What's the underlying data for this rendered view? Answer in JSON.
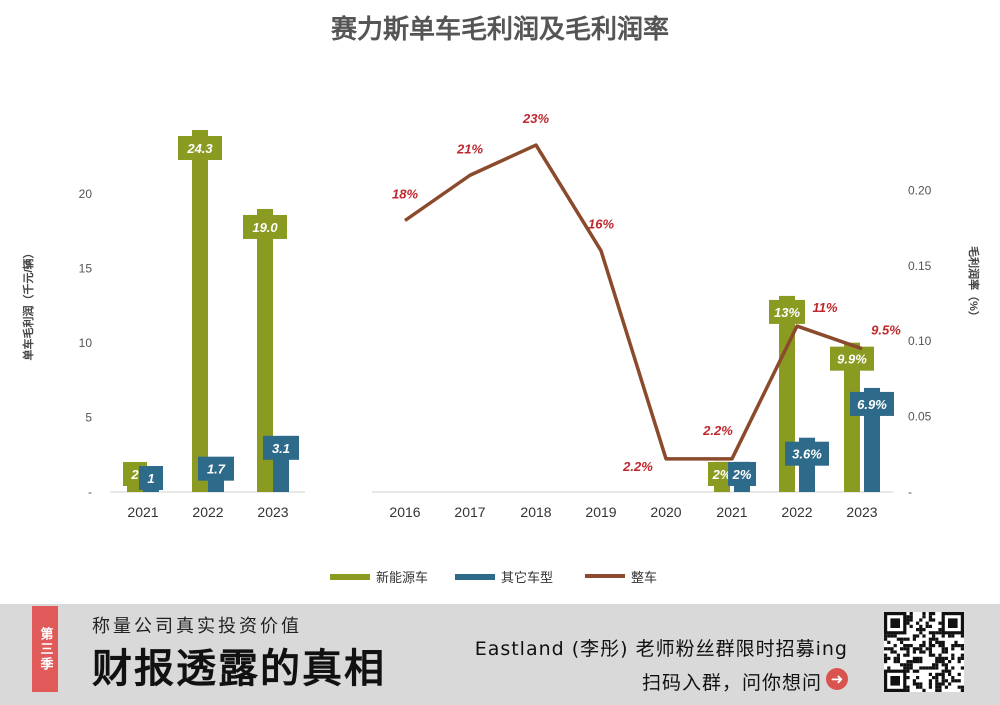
{
  "chart_data": {
    "title": "赛力斯单车毛利润及毛利润率",
    "ylabel_left": "单车毛利润（千元/辆）",
    "ylabel_right": "毛利润率（%）",
    "left_ticks": [
      "-",
      "5",
      "10",
      "15",
      "20"
    ],
    "right_ticks": [
      "-",
      "0.05",
      "0.10",
      "0.15",
      "0.20"
    ],
    "ylim_left": [
      0,
      24.3
    ],
    "ylim_right": [
      0,
      0.24
    ],
    "legend_position": "bottom",
    "grid": false,
    "bar_groups": [
      {
        "type": "bar",
        "categories": [
          "2021",
          "2022",
          "2023"
        ],
        "series": [
          {
            "name": "新能源车",
            "color": "#8b9a21",
            "values": [
              1.5,
              24.3,
              19.0
            ],
            "labels": [
              "2",
              "24.3",
              "19.0"
            ]
          },
          {
            "name": "其它车型",
            "color": "#2e6a8a",
            "values": [
              0.5,
              1.7,
              3.1
            ],
            "labels": [
              "1",
              "1.7",
              "3.1"
            ]
          }
        ]
      },
      {
        "type": "bar",
        "categories": [
          "2021",
          "2022",
          "2023"
        ],
        "series": [
          {
            "name": "新能源车",
            "color": "#8b9a21",
            "values": [
              0.02,
              0.13,
              0.099
            ],
            "labels": [
              "2%",
              "13%",
              "9.9%"
            ]
          },
          {
            "name": "其它车型",
            "color": "#2e6a8a",
            "values": [
              0.02,
              0.036,
              0.069
            ],
            "labels": [
              "2%",
              "3.6%",
              "6.9%"
            ]
          }
        ]
      }
    ],
    "line": {
      "type": "line",
      "name": "整车",
      "color": "#8b4a2b",
      "x": [
        "2016",
        "2017",
        "2018",
        "2019",
        "2020",
        "2021",
        "2022",
        "2023"
      ],
      "values": [
        0.18,
        0.21,
        0.23,
        0.16,
        0.022,
        0.022,
        0.11,
        0.095
      ],
      "labels": [
        "18%",
        "21%",
        "23%",
        "16%",
        "2.2%",
        "2.2%",
        "11%",
        "9.5%"
      ]
    },
    "label_color": "#c0282d"
  },
  "banner": {
    "season": "第三季",
    "tagline": "称量公司真实投资价值",
    "title": "财报透露的真相",
    "promo": "Eastland (李彤) 老师粉丝群限时招募ing",
    "scan": "扫码入群，问你想问",
    "arrow_icon": "➜"
  }
}
